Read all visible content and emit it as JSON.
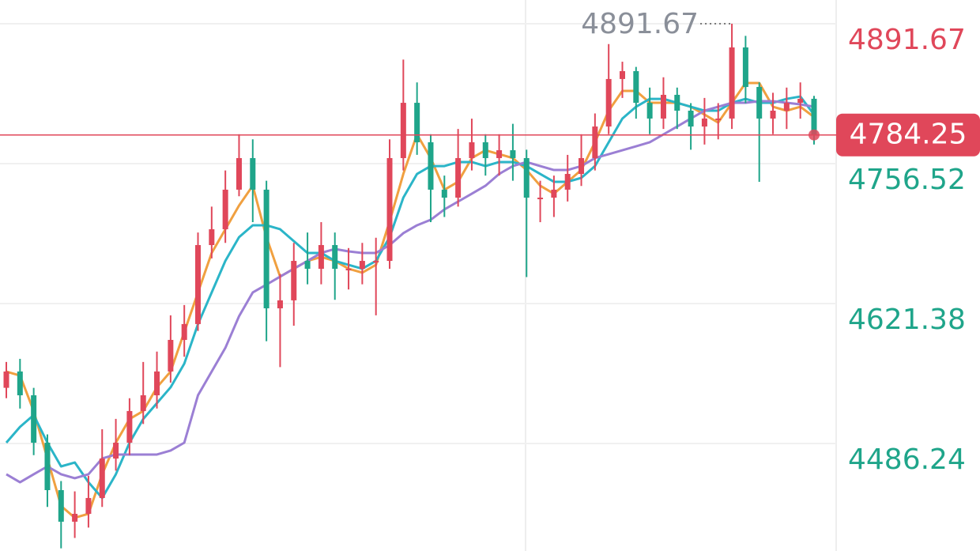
{
  "chart_data": {
    "type": "candlestick",
    "ylim": [
      4382.4,
      4914.6
    ],
    "yticks": [
      4891.67,
      4756.52,
      4621.38,
      4486.24
    ],
    "grid": true,
    "up_color": "#e0475a",
    "down_color": "#1fa58a",
    "last_price": 4784.25,
    "last_price_color": "#e0475a",
    "max_label": 4891.67,
    "candles": {
      "open": [
        4540.0,
        4555.8,
        4532.8,
        4487.0,
        4441.2,
        4410.7,
        4418.3,
        4433.6,
        4471.7,
        4487.0,
        4517.6,
        4532.8,
        4555.8,
        4586.3,
        4601.6,
        4677.9,
        4693.2,
        4731.4,
        4761.9,
        4731.4,
        4616.8,
        4624.5,
        4662.6,
        4655.0,
        4677.9,
        4655.0,
        4655.0,
        4662.6,
        4662.6,
        4761.9,
        4815.3,
        4777.2,
        4731.4,
        4723.7,
        4761.9,
        4777.2,
        4761.9,
        4769.5,
        4761.9,
        4723.7,
        4723.7,
        4731.4,
        4746.6,
        4761.9,
        4792.4,
        4838.3,
        4845.9,
        4815.3,
        4800.1,
        4823.0,
        4807.7,
        4792.4,
        4800.1,
        4800.1,
        4868.8,
        4830.6,
        4800.1,
        4807.7,
        4815.3,
        4819.2
      ],
      "high": [
        4565,
        4568,
        4540,
        4495,
        4450,
        4440,
        4455,
        4500,
        4510,
        4530,
        4565,
        4575,
        4610,
        4620,
        4690,
        4715,
        4750,
        4785,
        4780,
        4740,
        4650,
        4680,
        4690,
        4700,
        4690,
        4675,
        4680,
        4685,
        4780,
        4857,
        4835,
        4785,
        4745,
        4790,
        4800,
        4785,
        4785,
        4795,
        4770,
        4740,
        4745,
        4765,
        4785,
        4805,
        4872,
        4855,
        4850,
        4830,
        4840,
        4830,
        4815,
        4820,
        4815,
        4891.67,
        4880,
        4835,
        4825,
        4830,
        4835,
        4822
      ],
      "low": [
        4530,
        4520,
        4475,
        4425,
        4385,
        4395,
        4405,
        4425,
        4460,
        4475,
        4505,
        4520,
        4545,
        4570,
        4595,
        4665,
        4680,
        4725,
        4700,
        4585,
        4560,
        4600,
        4640,
        4640,
        4625,
        4635,
        4640,
        4610,
        4655,
        4750,
        4765,
        4700,
        4705,
        4715,
        4750,
        4745,
        4745,
        4740,
        4647,
        4700,
        4705,
        4720,
        4735,
        4750,
        4785,
        4820,
        4800,
        4785,
        4790,
        4790,
        4770,
        4775,
        4780,
        4790,
        4815,
        4739,
        4785,
        4790,
        4800,
        4775
      ],
      "close": [
        4555.8,
        4532.8,
        4487.0,
        4441.2,
        4410.7,
        4418.3,
        4433.6,
        4471.7,
        4487.0,
        4517.6,
        4532.8,
        4555.8,
        4586.3,
        4601.6,
        4677.9,
        4693.2,
        4731.4,
        4761.9,
        4731.4,
        4616.8,
        4624.5,
        4662.6,
        4655.0,
        4677.9,
        4655.0,
        4655.0,
        4662.6,
        4662.6,
        4761.9,
        4815.3,
        4777.2,
        4731.4,
        4723.7,
        4761.9,
        4777.2,
        4761.9,
        4769.5,
        4761.9,
        4723.7,
        4723.7,
        4731.4,
        4746.6,
        4761.9,
        4792.4,
        4838.3,
        4845.9,
        4815.3,
        4800.1,
        4823.0,
        4807.7,
        4792.4,
        4800.1,
        4800.1,
        4868.8,
        4830.6,
        4800.1,
        4807.7,
        4815.3,
        4819.2,
        4784.25
      ]
    },
    "series": [
      {
        "color": "#f0a040",
        "values": [
          4555.7,
          4551.9,
          4517.6,
          4471.8,
          4425.9,
          4414.5,
          4418.3,
          4456.5,
          4487.0,
          4509.9,
          4517.6,
          4540.5,
          4555.7,
          4593.9,
          4632.1,
          4670.3,
          4693.2,
          4716.1,
          4735.2,
          4685.5,
          4647.4,
          4655.0,
          4662.6,
          4666.4,
          4662.6,
          4655.0,
          4651.2,
          4658.8,
          4700.8,
          4746.6,
          4784.8,
          4761.9,
          4731.3,
          4739.0,
          4761.9,
          4769.5,
          4765.7,
          4761.9,
          4750.4,
          4735.2,
          4727.5,
          4739.0,
          4750.4,
          4777.2,
          4807.7,
          4826.8,
          4826.8,
          4815.3,
          4815.3,
          4815.3,
          4811.5,
          4803.9,
          4796.2,
          4815.3,
          4834.4,
          4834.4,
          4811.5,
          4807.7,
          4811.5,
          4801.6
        ]
      },
      {
        "color": "#2bb5c8",
        "values": [
          4487.0,
          4502.3,
          4513.7,
          4487.0,
          4464.1,
          4467.9,
          4448.8,
          4433.6,
          4456.5,
          4487.0,
          4509.9,
          4525.2,
          4540.5,
          4563.4,
          4601.5,
          4632.1,
          4662.6,
          4685.5,
          4697.0,
          4697.0,
          4693.2,
          4681.7,
          4670.3,
          4670.3,
          4662.6,
          4658.8,
          4655.0,
          4662.6,
          4685.5,
          4723.7,
          4746.6,
          4754.2,
          4754.2,
          4758.1,
          4758.1,
          4754.2,
          4758.1,
          4758.1,
          4754.2,
          4746.6,
          4739.0,
          4739.0,
          4742.8,
          4754.2,
          4777.2,
          4800.1,
          4811.5,
          4819.1,
          4819.1,
          4815.3,
          4811.5,
          4807.7,
          4807.7,
          4815.3,
          4819.1,
          4815.3,
          4815.3,
          4819.1,
          4821.4,
          4803.9
        ]
      },
      {
        "color": "#9b7fd4",
        "values": [
          4456.5,
          4448.8,
          4456.5,
          4464.1,
          4456.5,
          4452.7,
          4456.5,
          4471.8,
          4475.6,
          4475.6,
          4475.6,
          4475.6,
          4479.4,
          4487.0,
          4532.8,
          4555.7,
          4578.6,
          4609.2,
          4632.1,
          4639.7,
          4647.4,
          4655.0,
          4662.6,
          4670.3,
          4674.1,
          4671.8,
          4670.3,
          4670.3,
          4677.9,
          4689.4,
          4697.0,
          4702.3,
          4712.3,
          4719.9,
          4727.5,
          4735.2,
          4746.6,
          4754.2,
          4758.1,
          4754.2,
          4750.4,
          4750.4,
          4754.2,
          4761.9,
          4765.7,
          4769.5,
          4773.3,
          4777.2,
          4784.8,
          4792.4,
          4800.1,
          4807.7,
          4811.5,
          4815.3,
          4815.3,
          4816.9,
          4816.9,
          4815.3,
          4813.8,
          4811.5
        ]
      }
    ]
  }
}
